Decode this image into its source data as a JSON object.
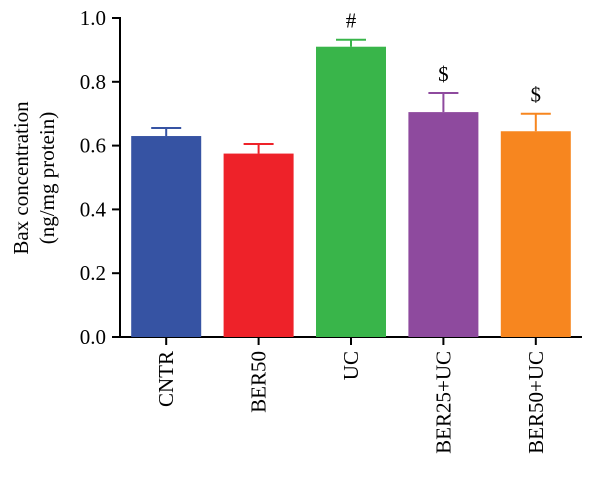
{
  "chart_data": {
    "type": "bar",
    "title": "",
    "xlabel": "",
    "ylabel_lines": [
      "Bax concentration",
      "(ng/mg protein)"
    ],
    "ylim": [
      0,
      1.0
    ],
    "yticks": [
      "0.0",
      "0.2",
      "0.4",
      "0.6",
      "0.8",
      "1.0"
    ],
    "ytick_values": [
      0,
      0.2,
      0.4,
      0.6,
      0.8,
      1.0
    ],
    "categories": [
      "CNTR",
      "BER50",
      "UC",
      "BER25+UC",
      "BER50+UC"
    ],
    "values": [
      0.63,
      0.575,
      0.91,
      0.705,
      0.645
    ],
    "errors": [
      0.025,
      0.03,
      0.022,
      0.06,
      0.055
    ],
    "annotations": [
      "",
      "",
      "#",
      "$",
      "$"
    ],
    "colors": [
      "#3653A3",
      "#EE2229",
      "#39B54A",
      "#8E4A9E",
      "#F7861F"
    ],
    "grid": false,
    "legend": "none"
  }
}
